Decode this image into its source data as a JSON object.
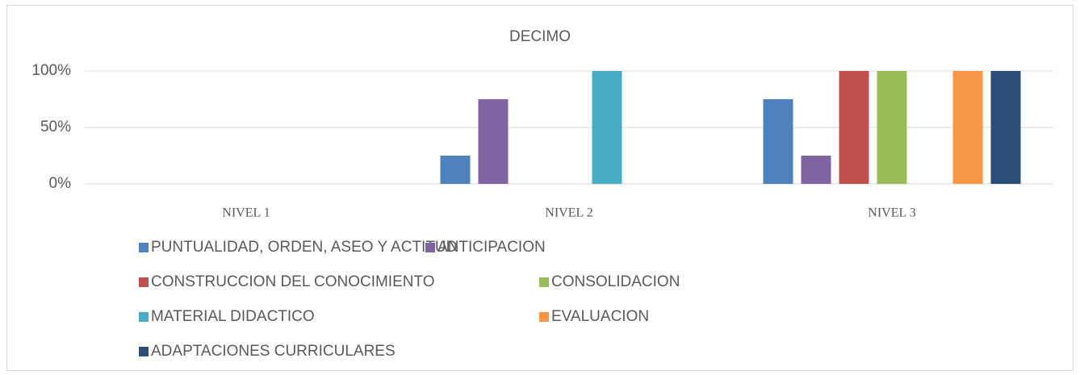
{
  "chart_data": {
    "type": "bar",
    "title": "DECIMO",
    "categories": [
      "NIVEL 1",
      "NIVEL 2",
      "NIVEL 3"
    ],
    "series": [
      {
        "name": "PUNTUALIDAD, ORDEN, ASEO Y ACTITUD",
        "color": "#4f81bd",
        "values": [
          0,
          25,
          75
        ]
      },
      {
        "name": "ANTICIPACION",
        "color": "#8064a2",
        "values": [
          0,
          75,
          25
        ]
      },
      {
        "name": "CONSTRUCCION DEL CONOCIMIENTO",
        "color": "#c0504d",
        "values": [
          0,
          0,
          100
        ]
      },
      {
        "name": "CONSOLIDACION",
        "color": "#9bbb59",
        "values": [
          0,
          0,
          100
        ]
      },
      {
        "name": "MATERIAL DIDACTICO",
        "color": "#4bacc6",
        "values": [
          0,
          100,
          0
        ]
      },
      {
        "name": "EVALUACION",
        "color": "#f79646",
        "values": [
          0,
          0,
          100
        ]
      },
      {
        "name": "ADAPTACIONES CURRICULARES",
        "color": "#2c4d75",
        "values": [
          0,
          0,
          100
        ]
      }
    ],
    "ylim": [
      0,
      100
    ],
    "yticks": [
      {
        "value": 0,
        "label": "0%"
      },
      {
        "value": 50,
        "label": "50%"
      },
      {
        "value": 100,
        "label": "100%"
      }
    ],
    "grid": true,
    "legend": "bottom"
  }
}
